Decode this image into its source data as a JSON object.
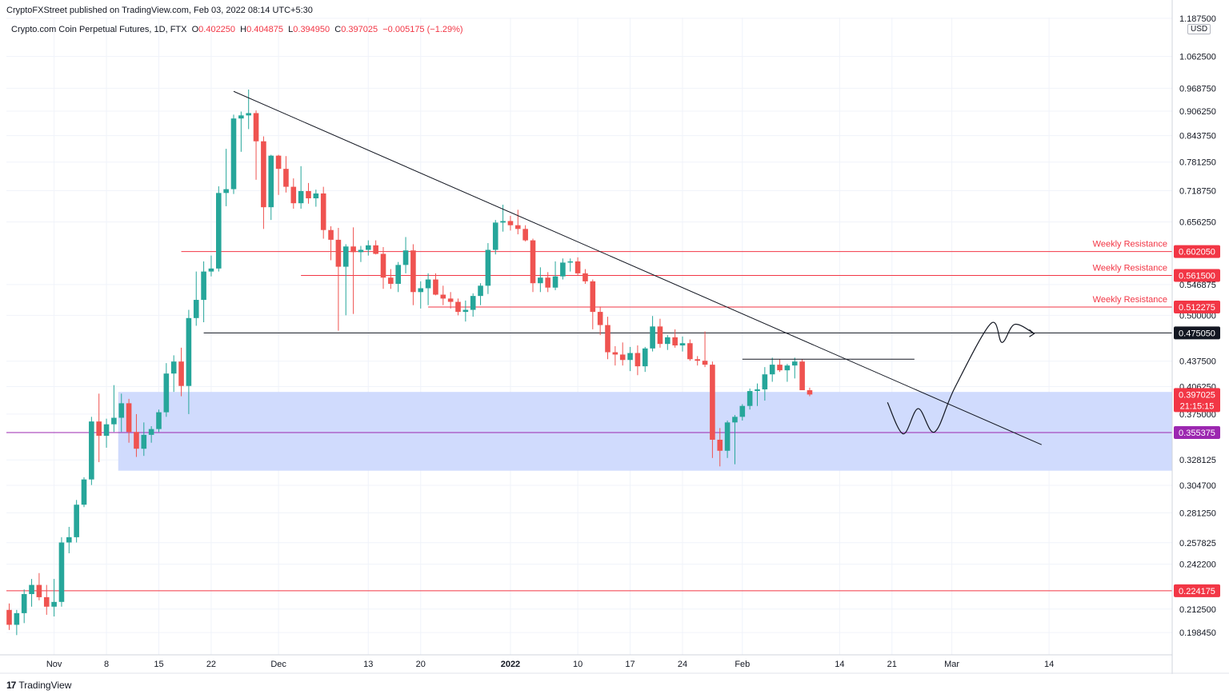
{
  "header": {
    "published": "CryptoFXStreet published on TradingView.com, Feb 03, 2022 08:14 UTC+5:30",
    "symbol": "Crypto.com Coin Perpetual Futures, 1D, FTX",
    "o_label": "O",
    "o_value": "0.402250",
    "h_label": "H",
    "h_value": "0.404875",
    "l_label": "L",
    "l_value": "0.394950",
    "c_label": "C",
    "c_value": "0.397025",
    "change": "−0.005175 (−1.29%)"
  },
  "brand": {
    "name": "TradingView",
    "logo": "17"
  },
  "currency": "USD",
  "colors": {
    "up": "#26a69a",
    "down": "#ef5350",
    "resistance": "#f23645",
    "zone": "#cdd9fd",
    "support": "#9c27b0",
    "black": "#131722"
  },
  "chart_data": {
    "type": "candlestick",
    "y_axis": {
      "scale": "log",
      "range": [
        0.186,
        1.19
      ],
      "ticks": [
        "0.198450",
        "0.212500",
        "0.242200",
        "0.257825",
        "0.281250",
        "0.304700",
        "0.328125",
        "0.375000",
        "0.406250",
        "0.437500",
        "0.500000",
        "0.546875",
        "0.656250",
        "0.718750",
        "0.781250",
        "0.843750",
        "0.906250",
        "0.968750",
        "1.062500",
        "1.187500"
      ]
    },
    "x_axis": {
      "start_date": "2021-10-26",
      "ticks": [
        {
          "label": "Nov",
          "day": 6
        },
        {
          "label": "8",
          "day": 13
        },
        {
          "label": "15",
          "day": 20
        },
        {
          "label": "22",
          "day": 27
        },
        {
          "label": "Dec",
          "day": 36
        },
        {
          "label": "13",
          "day": 48
        },
        {
          "label": "20",
          "day": 55
        },
        {
          "label": "2022",
          "day": 67
        },
        {
          "label": "10",
          "day": 76
        },
        {
          "label": "17",
          "day": 83
        },
        {
          "label": "24",
          "day": 90
        },
        {
          "label": "Feb",
          "day": 98
        },
        {
          "label": "14",
          "day": 111
        },
        {
          "label": "21",
          "day": 118
        },
        {
          "label": "Mar",
          "day": 126
        },
        {
          "label": "14",
          "day": 139
        }
      ]
    },
    "candles": [
      [
        0.212,
        0.216,
        0.2,
        0.203
      ],
      [
        0.203,
        0.212,
        0.197,
        0.21
      ],
      [
        0.21,
        0.225,
        0.204,
        0.222
      ],
      [
        0.222,
        0.232,
        0.214,
        0.228
      ],
      [
        0.228,
        0.236,
        0.218,
        0.22
      ],
      [
        0.22,
        0.228,
        0.209,
        0.214
      ],
      [
        0.214,
        0.232,
        0.208,
        0.217
      ],
      [
        0.217,
        0.262,
        0.214,
        0.258
      ],
      [
        0.258,
        0.27,
        0.25,
        0.262
      ],
      [
        0.262,
        0.292,
        0.258,
        0.288
      ],
      [
        0.288,
        0.312,
        0.286,
        0.31
      ],
      [
        0.31,
        0.372,
        0.305,
        0.367
      ],
      [
        0.367,
        0.398,
        0.326,
        0.352
      ],
      [
        0.352,
        0.37,
        0.34,
        0.364
      ],
      [
        0.364,
        0.408,
        0.356,
        0.371
      ],
      [
        0.371,
        0.398,
        0.356,
        0.387
      ],
      [
        0.387,
        0.392,
        0.345,
        0.356
      ],
      [
        0.356,
        0.375,
        0.331,
        0.339
      ],
      [
        0.339,
        0.366,
        0.332,
        0.353
      ],
      [
        0.353,
        0.362,
        0.345,
        0.359
      ],
      [
        0.359,
        0.38,
        0.356,
        0.377
      ],
      [
        0.377,
        0.435,
        0.372,
        0.422
      ],
      [
        0.422,
        0.445,
        0.4,
        0.437
      ],
      [
        0.437,
        0.455,
        0.395,
        0.407
      ],
      [
        0.407,
        0.508,
        0.375,
        0.496
      ],
      [
        0.496,
        0.568,
        0.485,
        0.523
      ],
      [
        0.523,
        0.585,
        0.49,
        0.568
      ],
      [
        0.568,
        0.595,
        0.56,
        0.573
      ],
      [
        0.573,
        0.728,
        0.568,
        0.714
      ],
      [
        0.714,
        0.812,
        0.687,
        0.722
      ],
      [
        0.722,
        0.897,
        0.712,
        0.887
      ],
      [
        0.887,
        0.905,
        0.805,
        0.895
      ],
      [
        0.895,
        0.965,
        0.86,
        0.901
      ],
      [
        0.901,
        0.908,
        0.742,
        0.83
      ],
      [
        0.83,
        0.842,
        0.643,
        0.685
      ],
      [
        0.685,
        0.798,
        0.66,
        0.796
      ],
      [
        0.796,
        0.798,
        0.71,
        0.766
      ],
      [
        0.766,
        0.795,
        0.715,
        0.727
      ],
      [
        0.727,
        0.745,
        0.682,
        0.693
      ],
      [
        0.693,
        0.772,
        0.682,
        0.718
      ],
      [
        0.718,
        0.735,
        0.692,
        0.703
      ],
      [
        0.703,
        0.721,
        0.686,
        0.713
      ],
      [
        0.713,
        0.727,
        0.625,
        0.641
      ],
      [
        0.641,
        0.648,
        0.587,
        0.623
      ],
      [
        0.623,
        0.645,
        0.478,
        0.576
      ],
      [
        0.576,
        0.615,
        0.5,
        0.611
      ],
      [
        0.611,
        0.646,
        0.502,
        0.601
      ],
      [
        0.601,
        0.612,
        0.584,
        0.605
      ],
      [
        0.605,
        0.622,
        0.595,
        0.613
      ],
      [
        0.613,
        0.622,
        0.597,
        0.598
      ],
      [
        0.598,
        0.61,
        0.54,
        0.558
      ],
      [
        0.558,
        0.572,
        0.54,
        0.548
      ],
      [
        0.548,
        0.584,
        0.535,
        0.579
      ],
      [
        0.579,
        0.628,
        0.565,
        0.604
      ],
      [
        0.604,
        0.615,
        0.515,
        0.535
      ],
      [
        0.535,
        0.552,
        0.51,
        0.541
      ],
      [
        0.541,
        0.565,
        0.515,
        0.555
      ],
      [
        0.555,
        0.565,
        0.53,
        0.531
      ],
      [
        0.531,
        0.545,
        0.515,
        0.525
      ],
      [
        0.525,
        0.535,
        0.51,
        0.52
      ],
      [
        0.52,
        0.525,
        0.5,
        0.505
      ],
      [
        0.505,
        0.522,
        0.491,
        0.508
      ],
      [
        0.508,
        0.533,
        0.498,
        0.529
      ],
      [
        0.529,
        0.549,
        0.515,
        0.545
      ],
      [
        0.545,
        0.617,
        0.532,
        0.605
      ],
      [
        0.605,
        0.66,
        0.597,
        0.655
      ],
      [
        0.655,
        0.69,
        0.638,
        0.658
      ],
      [
        0.658,
        0.668,
        0.64,
        0.65
      ],
      [
        0.65,
        0.68,
        0.633,
        0.643
      ],
      [
        0.643,
        0.65,
        0.62,
        0.622
      ],
      [
        0.622,
        0.625,
        0.535,
        0.549
      ],
      [
        0.549,
        0.575,
        0.535,
        0.558
      ],
      [
        0.558,
        0.567,
        0.535,
        0.542
      ],
      [
        0.542,
        0.585,
        0.538,
        0.56
      ],
      [
        0.56,
        0.59,
        0.555,
        0.583
      ],
      [
        0.583,
        0.59,
        0.568,
        0.585
      ],
      [
        0.585,
        0.592,
        0.562,
        0.565
      ],
      [
        0.565,
        0.572,
        0.548,
        0.552
      ],
      [
        0.552,
        0.555,
        0.48,
        0.505
      ],
      [
        0.505,
        0.513,
        0.472,
        0.486
      ],
      [
        0.486,
        0.498,
        0.44,
        0.449
      ],
      [
        0.449,
        0.457,
        0.432,
        0.446
      ],
      [
        0.446,
        0.462,
        0.432,
        0.439
      ],
      [
        0.439,
        0.456,
        0.425,
        0.448
      ],
      [
        0.448,
        0.458,
        0.42,
        0.431
      ],
      [
        0.431,
        0.456,
        0.424,
        0.454
      ],
      [
        0.454,
        0.499,
        0.45,
        0.484
      ],
      [
        0.484,
        0.495,
        0.455,
        0.46
      ],
      [
        0.46,
        0.472,
        0.452,
        0.469
      ],
      [
        0.469,
        0.48,
        0.455,
        0.458
      ],
      [
        0.458,
        0.47,
        0.45,
        0.461
      ],
      [
        0.461,
        0.466,
        0.438,
        0.44
      ],
      [
        0.44,
        0.444,
        0.432,
        0.438
      ],
      [
        0.438,
        0.477,
        0.43,
        0.433
      ],
      [
        0.433,
        0.437,
        0.33,
        0.348
      ],
      [
        0.348,
        0.36,
        0.322,
        0.337
      ],
      [
        0.337,
        0.368,
        0.33,
        0.366
      ],
      [
        0.366,
        0.374,
        0.324,
        0.372
      ],
      [
        0.372,
        0.386,
        0.368,
        0.384
      ],
      [
        0.384,
        0.404,
        0.38,
        0.401
      ],
      [
        0.401,
        0.41,
        0.384,
        0.403
      ],
      [
        0.403,
        0.43,
        0.39,
        0.421
      ],
      [
        0.421,
        0.442,
        0.412,
        0.433
      ],
      [
        0.433,
        0.44,
        0.424,
        0.426
      ],
      [
        0.426,
        0.434,
        0.412,
        0.432
      ],
      [
        0.432,
        0.442,
        0.416,
        0.437
      ],
      [
        0.437,
        0.44,
        0.406,
        0.402
      ],
      [
        0.402,
        0.405,
        0.395,
        0.397
      ]
    ],
    "horizontal_levels": [
      {
        "value": 0.60205,
        "label": "0.602050",
        "title": "Weekly Resistance",
        "color": "#f23645",
        "from_day": 23
      },
      {
        "value": 0.5615,
        "label": "0.561500",
        "title": "Weekly Resistance",
        "color": "#f23645",
        "from_day": 39
      },
      {
        "value": 0.512275,
        "label": "0.512275",
        "title": "Weekly Resistance",
        "color": "#f23645",
        "from_day": 56
      },
      {
        "value": 0.47505,
        "label": "0.475050",
        "title": "",
        "color": "#131722",
        "from_day": 26
      },
      {
        "value": 0.355375,
        "label": "0.355375",
        "title": "",
        "color": "#9c27b0",
        "from_day": 0
      },
      {
        "value": 0.224175,
        "label": "0.224175",
        "title": "",
        "color": "#f23645",
        "from_day": 0
      }
    ],
    "current_price": {
      "value": 0.397025,
      "label": "0.397025",
      "countdown": "21:15:15",
      "color": "#f23645"
    },
    "demand_zone": {
      "high": 0.4,
      "low": 0.318,
      "from_day": 15
    },
    "annotations": {
      "trendline": [
        {
          "day": 30,
          "value": 0.96
        },
        {
          "day": 138,
          "value": 0.343
        }
      ],
      "swing_high_line": {
        "value": 0.44,
        "from_day": 98,
        "to_day": 121
      },
      "projection": [
        {
          "day": 117.4,
          "value": 0.388
        },
        {
          "day": 119.5,
          "value": 0.354
        },
        {
          "day": 121.5,
          "value": 0.381
        },
        {
          "day": 123.7,
          "value": 0.356
        },
        {
          "day": 126.4,
          "value": 0.405
        },
        {
          "day": 131.2,
          "value": 0.488
        },
        {
          "day": 132.7,
          "value": 0.462
        },
        {
          "day": 134.4,
          "value": 0.487
        },
        {
          "day": 137.0,
          "value": 0.474
        }
      ]
    }
  }
}
